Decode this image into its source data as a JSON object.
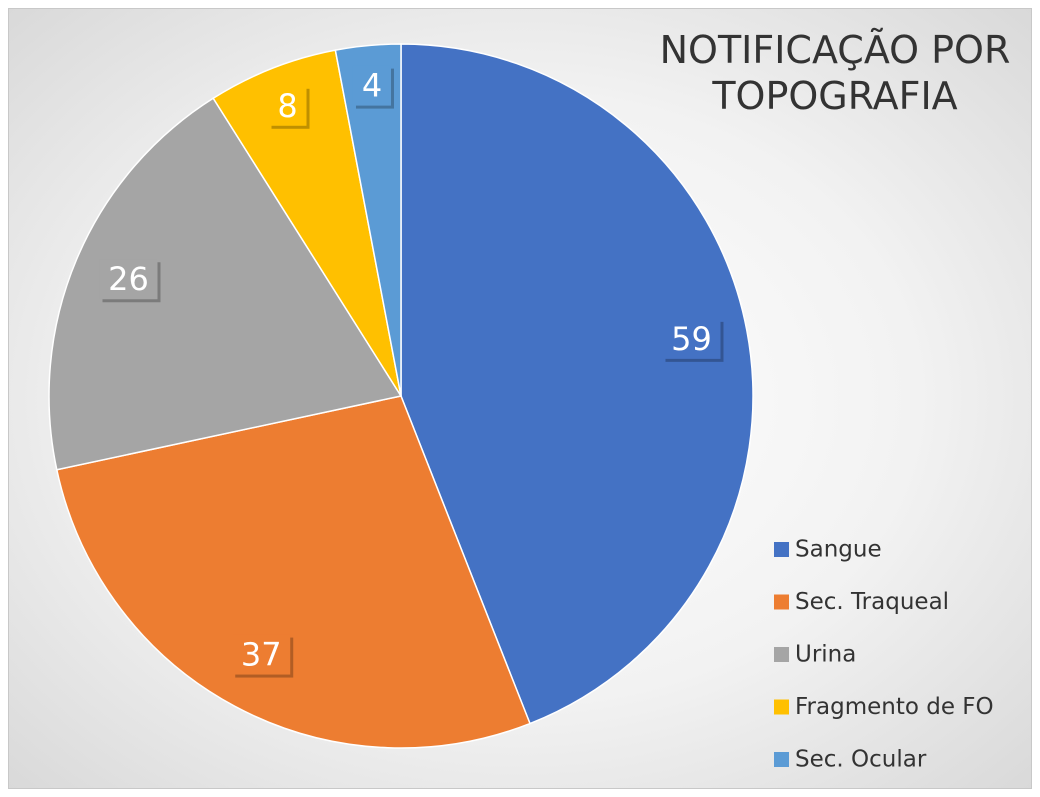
{
  "chart_data": {
    "type": "pie",
    "title": "NOTIFICAÇÃO POR TOPOGRAFIA",
    "categories": [
      "Sangue",
      "Sec. Traqueal",
      "Urina",
      "Fragmento de FO",
      "Sec. Ocular"
    ],
    "values": [
      59,
      37,
      26,
      8,
      4
    ],
    "colors": [
      "#4472c4",
      "#ed7d31",
      "#a5a5a5",
      "#ffc000",
      "#5b9bd5"
    ],
    "legend": "right"
  }
}
